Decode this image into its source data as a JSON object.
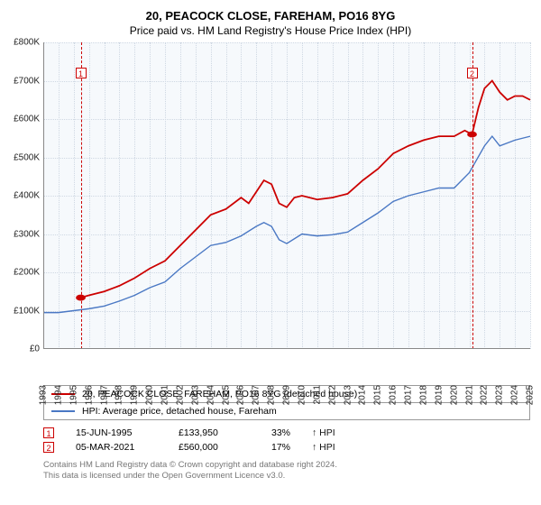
{
  "title": "20, PEACOCK CLOSE, FAREHAM, PO16 8YG",
  "subtitle": "Price paid vs. HM Land Registry's House Price Index (HPI)",
  "chart": {
    "type": "line",
    "background_color": "#f6f9fc",
    "grid_color": "#cfd8e3",
    "axis_color": "#888888",
    "ylim": [
      0,
      800000
    ],
    "ytick_step": 100000,
    "ytick_labels": [
      "£0",
      "£100K",
      "£200K",
      "£300K",
      "£400K",
      "£500K",
      "£600K",
      "£700K",
      "£800K"
    ],
    "x_years": [
      1993,
      1994,
      1995,
      1996,
      1997,
      1998,
      1999,
      2000,
      2001,
      2002,
      2003,
      2004,
      2005,
      2006,
      2007,
      2008,
      2009,
      2010,
      2011,
      2012,
      2013,
      2014,
      2015,
      2016,
      2017,
      2018,
      2019,
      2020,
      2021,
      2022,
      2023,
      2024,
      2025
    ],
    "series": [
      {
        "name": "20, PEACOCK CLOSE, FAREHAM, PO16 8YG (detached house)",
        "color": "#cc0000",
        "line_width": 1.8,
        "points": [
          [
            1995.46,
            133950
          ],
          [
            1996,
            140000
          ],
          [
            1997,
            150000
          ],
          [
            1998,
            165000
          ],
          [
            1999,
            185000
          ],
          [
            2000,
            210000
          ],
          [
            2001,
            230000
          ],
          [
            2002,
            270000
          ],
          [
            2003,
            310000
          ],
          [
            2004,
            350000
          ],
          [
            2005,
            365000
          ],
          [
            2006,
            395000
          ],
          [
            2006.5,
            380000
          ],
          [
            2007,
            410000
          ],
          [
            2007.5,
            440000
          ],
          [
            2008,
            430000
          ],
          [
            2008.5,
            380000
          ],
          [
            2009,
            370000
          ],
          [
            2009.5,
            395000
          ],
          [
            2010,
            400000
          ],
          [
            2011,
            390000
          ],
          [
            2012,
            395000
          ],
          [
            2013,
            405000
          ],
          [
            2014,
            440000
          ],
          [
            2015,
            470000
          ],
          [
            2016,
            510000
          ],
          [
            2017,
            530000
          ],
          [
            2018,
            545000
          ],
          [
            2019,
            555000
          ],
          [
            2020,
            555000
          ],
          [
            2020.7,
            570000
          ],
          [
            2021.18,
            560000
          ],
          [
            2021.6,
            630000
          ],
          [
            2022,
            680000
          ],
          [
            2022.5,
            700000
          ],
          [
            2023,
            670000
          ],
          [
            2023.5,
            650000
          ],
          [
            2024,
            660000
          ],
          [
            2024.5,
            660000
          ],
          [
            2025,
            650000
          ]
        ]
      },
      {
        "name": "HPI: Average price, detached house, Fareham",
        "color": "#4a78c4",
        "line_width": 1.4,
        "points": [
          [
            1993,
            95000
          ],
          [
            1994,
            95000
          ],
          [
            1995,
            100000
          ],
          [
            1996,
            105000
          ],
          [
            1997,
            112000
          ],
          [
            1998,
            125000
          ],
          [
            1999,
            140000
          ],
          [
            2000,
            160000
          ],
          [
            2001,
            175000
          ],
          [
            2002,
            210000
          ],
          [
            2003,
            240000
          ],
          [
            2004,
            270000
          ],
          [
            2005,
            278000
          ],
          [
            2006,
            295000
          ],
          [
            2007,
            320000
          ],
          [
            2007.5,
            330000
          ],
          [
            2008,
            320000
          ],
          [
            2008.5,
            285000
          ],
          [
            2009,
            275000
          ],
          [
            2010,
            300000
          ],
          [
            2011,
            295000
          ],
          [
            2012,
            298000
          ],
          [
            2013,
            305000
          ],
          [
            2014,
            330000
          ],
          [
            2015,
            355000
          ],
          [
            2016,
            385000
          ],
          [
            2017,
            400000
          ],
          [
            2018,
            410000
          ],
          [
            2019,
            420000
          ],
          [
            2020,
            420000
          ],
          [
            2021,
            460000
          ],
          [
            2022,
            530000
          ],
          [
            2022.5,
            555000
          ],
          [
            2023,
            530000
          ],
          [
            2024,
            545000
          ],
          [
            2025,
            555000
          ]
        ]
      }
    ],
    "event_markers": [
      {
        "id": "1",
        "x": 1995.46,
        "y": 133950,
        "label_y": 720000
      },
      {
        "id": "2",
        "x": 2021.18,
        "y": 560000,
        "label_y": 720000
      }
    ]
  },
  "legend": [
    {
      "color": "#cc0000",
      "label": "20, PEACOCK CLOSE, FAREHAM, PO16 8YG (detached house)"
    },
    {
      "color": "#4a78c4",
      "label": "HPI: Average price, detached house, Fareham"
    }
  ],
  "events": [
    {
      "id": "1",
      "date": "15-JUN-1995",
      "price": "£133,950",
      "pct": "33%",
      "arrow": "↑",
      "vs": "HPI"
    },
    {
      "id": "2",
      "date": "05-MAR-2021",
      "price": "£560,000",
      "pct": "17%",
      "arrow": "↑",
      "vs": "HPI"
    }
  ],
  "footer_lines": [
    "Contains HM Land Registry data © Crown copyright and database right 2024.",
    "This data is licensed under the Open Government Licence v3.0."
  ]
}
